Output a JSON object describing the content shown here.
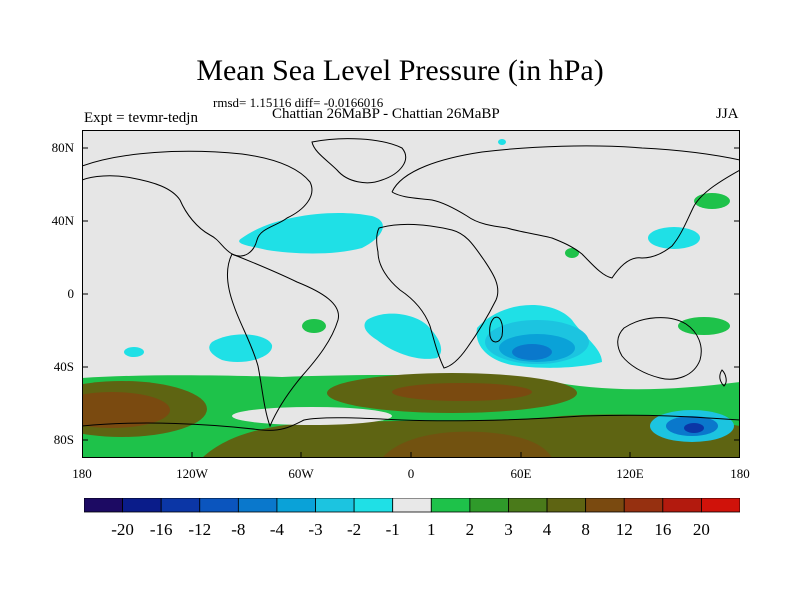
{
  "title": "Mean Sea Level Pressure (in hPa)",
  "stats": "rmsd= 1.15116 diff= -0.0166016",
  "experiment": "Expt = tevmr-tedjn",
  "period": "Chattian  26MaBP - Chattian  26MaBP",
  "season": "JJA",
  "lat_ticks": [
    "80N",
    "40N",
    "0",
    "40S",
    "80S"
  ],
  "lon_ticks": [
    "180",
    "120W",
    "60W",
    "0",
    "60E",
    "120E",
    "180"
  ],
  "colorbar": {
    "labels": [
      "-20",
      "-16",
      "-12",
      "-8",
      "-4",
      "-3",
      "-2",
      "-1",
      "1",
      "2",
      "3",
      "4",
      "8",
      "12",
      "16",
      "20"
    ],
    "colors": [
      "#1c0a63",
      "#0a1c8a",
      "#0b36a6",
      "#0b55be",
      "#0a78cc",
      "#0aa2d8",
      "#1cc4e0",
      "#1fe0e6",
      "#e8e8e8",
      "#1ec24a",
      "#2f9a2a",
      "#4a7a1a",
      "#5e6412",
      "#7a4a10",
      "#963010",
      "#b31a0e",
      "#d0120a"
    ]
  },
  "map_colors": {
    "background": "#e6e6e6",
    "cyan": "#1fe0e6",
    "light_blue": "#1cc4e0",
    "mid_blue": "#0aa2d8",
    "blue": "#0a78cc",
    "deep_blue": "#0b36a6",
    "green": "#1ec24a",
    "dark_green": "#2f9a2a",
    "olive": "#5e6412",
    "brown": "#7a4a10",
    "coast": "#000000"
  },
  "projection": "cylindrical-equidistant",
  "longitude_range": [
    -180,
    180
  ],
  "latitude_range": [
    -90,
    90
  ]
}
